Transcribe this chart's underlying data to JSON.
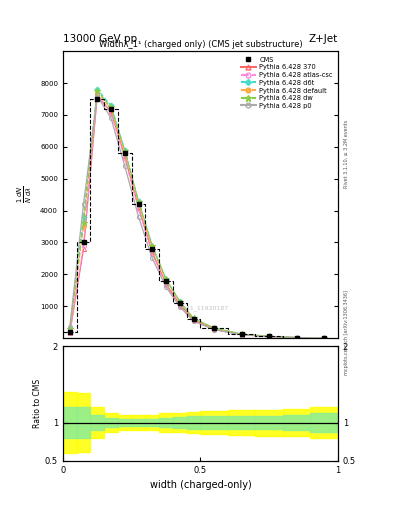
{
  "title_top": "13000 GeV pp",
  "title_right": "Z+Jet",
  "plot_title": "Widthλ_1¹ (charged only) (CMS jet substructure)",
  "xlabel": "width (charged-only)",
  "ylabel_main": "$\\frac{1}{N}\\frac{dN}{d\\lambda}$",
  "ylabel_ratio": "Ratio to CMS",
  "right_label": "Rivet 3.1.10, ≥ 3.2M events",
  "arxiv_label": "mcplots.cern.ch [arXiv:1306.3436]",
  "watermark": "2021_11920187",
  "x_edges": [
    0.0,
    0.05,
    0.1,
    0.15,
    0.2,
    0.25,
    0.3,
    0.35,
    0.4,
    0.45,
    0.5,
    0.6,
    0.7,
    0.8,
    0.9,
    1.0
  ],
  "x_centers": [
    0.025,
    0.075,
    0.125,
    0.175,
    0.225,
    0.275,
    0.325,
    0.375,
    0.425,
    0.475,
    0.55,
    0.65,
    0.75,
    0.85,
    0.95
  ],
  "cms_y": [
    200,
    3000,
    7500,
    7200,
    5800,
    4200,
    2800,
    1800,
    1100,
    600,
    300,
    120,
    50,
    15,
    3
  ],
  "py370_y": [
    150,
    2800,
    7600,
    7100,
    5700,
    4100,
    2700,
    1700,
    1050,
    570,
    280,
    110,
    45,
    13,
    2
  ],
  "py_atlas_y": [
    160,
    2900,
    7650,
    7050,
    5650,
    4050,
    2650,
    1650,
    1000,
    540,
    265,
    105,
    42,
    12,
    2
  ],
  "py_d6t_y": [
    300,
    3800,
    7800,
    7300,
    5900,
    4300,
    2900,
    1850,
    1150,
    620,
    310,
    125,
    52,
    16,
    3
  ],
  "py_default_y": [
    250,
    3500,
    7700,
    7200,
    5850,
    4250,
    2850,
    1820,
    1120,
    605,
    305,
    122,
    50,
    15,
    3
  ],
  "py_dw_y": [
    280,
    3600,
    7750,
    7250,
    5880,
    4280,
    2880,
    1840,
    1140,
    615,
    308,
    124,
    51,
    16,
    3
  ],
  "py_p0_y": [
    350,
    4200,
    7600,
    6900,
    5400,
    3800,
    2500,
    1600,
    980,
    530,
    260,
    105,
    43,
    13,
    2
  ],
  "ratio_x_edges": [
    0.0,
    0.05,
    0.1,
    0.15,
    0.2,
    0.25,
    0.3,
    0.35,
    0.4,
    0.45,
    0.5,
    0.6,
    0.7,
    0.8,
    0.9,
    1.0
  ],
  "ratio_green_upper": [
    1.2,
    1.2,
    1.1,
    1.06,
    1.05,
    1.05,
    1.05,
    1.06,
    1.07,
    1.08,
    1.08,
    1.08,
    1.09,
    1.1,
    1.12
  ],
  "ratio_green_lower": [
    0.8,
    0.8,
    0.9,
    0.94,
    0.95,
    0.95,
    0.95,
    0.94,
    0.93,
    0.92,
    0.92,
    0.92,
    0.91,
    0.9,
    0.88
  ],
  "ratio_yellow_upper": [
    1.4,
    1.38,
    1.2,
    1.12,
    1.1,
    1.1,
    1.1,
    1.12,
    1.13,
    1.14,
    1.15,
    1.16,
    1.17,
    1.18,
    1.2
  ],
  "ratio_yellow_lower": [
    0.6,
    0.62,
    0.8,
    0.88,
    0.9,
    0.9,
    0.9,
    0.88,
    0.87,
    0.86,
    0.85,
    0.84,
    0.83,
    0.82,
    0.8
  ],
  "color_370": "#ff6666",
  "color_atlas": "#ff88dd",
  "color_d6t": "#44ddcc",
  "color_default": "#ffaa44",
  "color_dw": "#88cc44",
  "color_p0": "#aaaaaa",
  "ylim_main": [
    0,
    9000
  ],
  "ylim_ratio": [
    0.5,
    2.0
  ],
  "xlim": [
    0.0,
    1.0
  ],
  "yticks_main": [
    1000,
    2000,
    3000,
    4000,
    5000,
    6000,
    7000,
    8000
  ],
  "ytick_labels_main": [
    "1000",
    "2000",
    "3000",
    "4000",
    "5000",
    "6000",
    "7000",
    "8000"
  ],
  "yticks_ratio": [
    0.5,
    1.0,
    2.0
  ],
  "xticks": [
    0.0,
    0.5,
    1.0
  ],
  "xtick_labels": [
    "0",
    "0.5",
    "1"
  ]
}
